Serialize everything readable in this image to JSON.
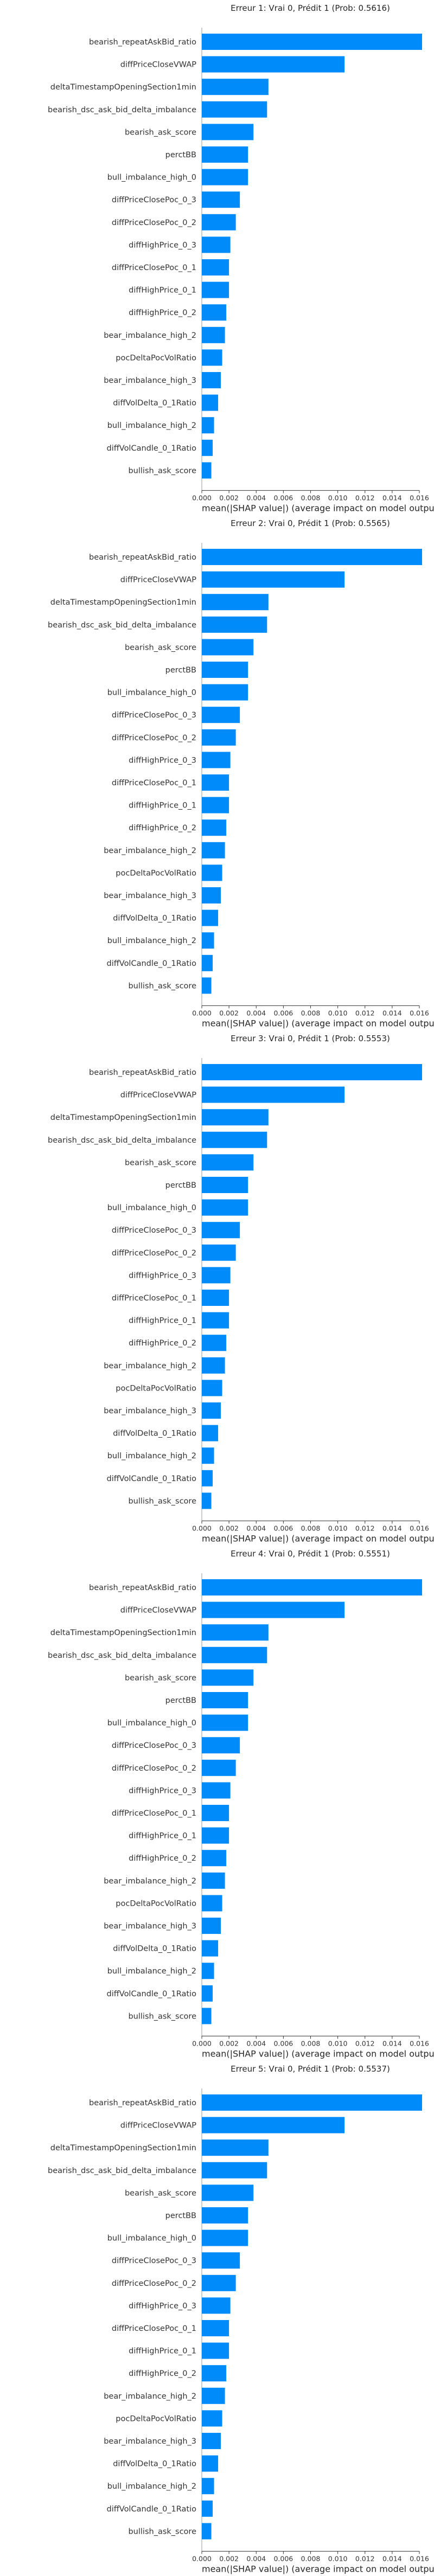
{
  "colors": {
    "bar": "#008bfb",
    "axis": "#333333"
  },
  "chart_data": [
    {
      "type": "bar",
      "title": "Erreur 1: Vrai 0, Prédit 1 (Prob: 0.5616)",
      "xlabel": "mean(|SHAP value|) (average impact on model output ma",
      "x_ticks": [
        "0.000",
        "0.002",
        "0.004",
        "0.006",
        "0.008",
        "0.010",
        "0.012",
        "0.014",
        "0.016"
      ],
      "xlim": [
        0,
        0.016
      ],
      "categories": [
        "bearish_repeatAskBid_ratio",
        "diffPriceCloseVWAP",
        "deltaTimestampOpeningSection1min",
        "bearish_dsc_ask_bid_delta_imbalance",
        "bearish_ask_score",
        "perctBB",
        "bull_imbalance_high_0",
        "diffPriceClosePoc_0_3",
        "diffPriceClosePoc_0_2",
        "diffHighPrice_0_3",
        "diffPriceClosePoc_0_1",
        "diffHighPrice_0_1",
        "diffHighPrice_0_2",
        "bear_imbalance_high_2",
        "pocDeltaPocVolRatio",
        "bear_imbalance_high_3",
        "diffVolDelta_0_1Ratio",
        "bull_imbalance_high_2",
        "diffVolCandle_0_1Ratio",
        "bullish_ask_score"
      ],
      "values": [
        0.0162,
        0.0105,
        0.0049,
        0.0048,
        0.0038,
        0.0034,
        0.0034,
        0.0028,
        0.0025,
        0.0021,
        0.002,
        0.002,
        0.0018,
        0.0017,
        0.0015,
        0.0014,
        0.0012,
        0.0009,
        0.0008,
        0.0007
      ]
    },
    {
      "type": "bar",
      "title": "Erreur 2: Vrai 0, Prédit 1 (Prob: 0.5565)",
      "xlabel": "mean(|SHAP value|) (average impact on model output ma",
      "x_ticks": [
        "0.000",
        "0.002",
        "0.004",
        "0.006",
        "0.008",
        "0.010",
        "0.012",
        "0.014",
        "0.016"
      ],
      "xlim": [
        0,
        0.016
      ],
      "categories": [
        "bearish_repeatAskBid_ratio",
        "diffPriceCloseVWAP",
        "deltaTimestampOpeningSection1min",
        "bearish_dsc_ask_bid_delta_imbalance",
        "bearish_ask_score",
        "perctBB",
        "bull_imbalance_high_0",
        "diffPriceClosePoc_0_3",
        "diffPriceClosePoc_0_2",
        "diffHighPrice_0_3",
        "diffPriceClosePoc_0_1",
        "diffHighPrice_0_1",
        "diffHighPrice_0_2",
        "bear_imbalance_high_2",
        "pocDeltaPocVolRatio",
        "bear_imbalance_high_3",
        "diffVolDelta_0_1Ratio",
        "bull_imbalance_high_2",
        "diffVolCandle_0_1Ratio",
        "bullish_ask_score"
      ],
      "values": [
        0.0162,
        0.0105,
        0.0049,
        0.0048,
        0.0038,
        0.0034,
        0.0034,
        0.0028,
        0.0025,
        0.0021,
        0.002,
        0.002,
        0.0018,
        0.0017,
        0.0015,
        0.0014,
        0.0012,
        0.0009,
        0.0008,
        0.0007
      ]
    },
    {
      "type": "bar",
      "title": "Erreur 3: Vrai 0, Prédit 1 (Prob: 0.5553)",
      "xlabel": "mean(|SHAP value|) (average impact on model output ma",
      "x_ticks": [
        "0.000",
        "0.002",
        "0.004",
        "0.006",
        "0.008",
        "0.010",
        "0.012",
        "0.014",
        "0.016"
      ],
      "xlim": [
        0,
        0.016
      ],
      "categories": [
        "bearish_repeatAskBid_ratio",
        "diffPriceCloseVWAP",
        "deltaTimestampOpeningSection1min",
        "bearish_dsc_ask_bid_delta_imbalance",
        "bearish_ask_score",
        "perctBB",
        "bull_imbalance_high_0",
        "diffPriceClosePoc_0_3",
        "diffPriceClosePoc_0_2",
        "diffHighPrice_0_3",
        "diffPriceClosePoc_0_1",
        "diffHighPrice_0_1",
        "diffHighPrice_0_2",
        "bear_imbalance_high_2",
        "pocDeltaPocVolRatio",
        "bear_imbalance_high_3",
        "diffVolDelta_0_1Ratio",
        "bull_imbalance_high_2",
        "diffVolCandle_0_1Ratio",
        "bullish_ask_score"
      ],
      "values": [
        0.0162,
        0.0105,
        0.0049,
        0.0048,
        0.0038,
        0.0034,
        0.0034,
        0.0028,
        0.0025,
        0.0021,
        0.002,
        0.002,
        0.0018,
        0.0017,
        0.0015,
        0.0014,
        0.0012,
        0.0009,
        0.0008,
        0.0007
      ]
    },
    {
      "type": "bar",
      "title": "Erreur 4: Vrai 0, Prédit 1 (Prob: 0.5551)",
      "xlabel": "mean(|SHAP value|) (average impact on model output ma",
      "x_ticks": [
        "0.000",
        "0.002",
        "0.004",
        "0.006",
        "0.008",
        "0.010",
        "0.012",
        "0.014",
        "0.016"
      ],
      "xlim": [
        0,
        0.016
      ],
      "categories": [
        "bearish_repeatAskBid_ratio",
        "diffPriceCloseVWAP",
        "deltaTimestampOpeningSection1min",
        "bearish_dsc_ask_bid_delta_imbalance",
        "bearish_ask_score",
        "perctBB",
        "bull_imbalance_high_0",
        "diffPriceClosePoc_0_3",
        "diffPriceClosePoc_0_2",
        "diffHighPrice_0_3",
        "diffPriceClosePoc_0_1",
        "diffHighPrice_0_1",
        "diffHighPrice_0_2",
        "bear_imbalance_high_2",
        "pocDeltaPocVolRatio",
        "bear_imbalance_high_3",
        "diffVolDelta_0_1Ratio",
        "bull_imbalance_high_2",
        "diffVolCandle_0_1Ratio",
        "bullish_ask_score"
      ],
      "values": [
        0.0162,
        0.0105,
        0.0049,
        0.0048,
        0.0038,
        0.0034,
        0.0034,
        0.0028,
        0.0025,
        0.0021,
        0.002,
        0.002,
        0.0018,
        0.0017,
        0.0015,
        0.0014,
        0.0012,
        0.0009,
        0.0008,
        0.0007
      ]
    },
    {
      "type": "bar",
      "title": "Erreur 5: Vrai 0, Prédit 1 (Prob: 0.5537)",
      "xlabel": "mean(|SHAP value|) (average impact on model output ma",
      "x_ticks": [
        "0.000",
        "0.002",
        "0.004",
        "0.006",
        "0.008",
        "0.010",
        "0.012",
        "0.014",
        "0.016"
      ],
      "xlim": [
        0,
        0.016
      ],
      "categories": [
        "bearish_repeatAskBid_ratio",
        "diffPriceCloseVWAP",
        "deltaTimestampOpeningSection1min",
        "bearish_dsc_ask_bid_delta_imbalance",
        "bearish_ask_score",
        "perctBB",
        "bull_imbalance_high_0",
        "diffPriceClosePoc_0_3",
        "diffPriceClosePoc_0_2",
        "diffHighPrice_0_3",
        "diffPriceClosePoc_0_1",
        "diffHighPrice_0_1",
        "diffHighPrice_0_2",
        "bear_imbalance_high_2",
        "pocDeltaPocVolRatio",
        "bear_imbalance_high_3",
        "diffVolDelta_0_1Ratio",
        "bull_imbalance_high_2",
        "diffVolCandle_0_1Ratio",
        "bullish_ask_score"
      ],
      "values": [
        0.0162,
        0.0105,
        0.0049,
        0.0048,
        0.0038,
        0.0034,
        0.0034,
        0.0028,
        0.0025,
        0.0021,
        0.002,
        0.002,
        0.0018,
        0.0017,
        0.0015,
        0.0014,
        0.0012,
        0.0009,
        0.0008,
        0.0007
      ]
    }
  ]
}
